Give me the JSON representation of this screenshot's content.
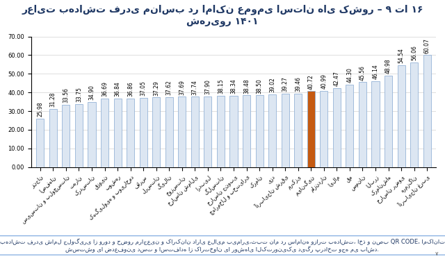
{
  "chart_data": {
    "type": "bar",
    "title": "رعایت بهداشت فردی مناسب در اماکن عمومی استان های کشور – ۹ تا ۱۶ شهریور ۱۴۰۱",
    "categories": [
      "زنجان",
      "اصفهان",
      "سیستان و بلوچستان",
      "تهران",
      "کردستان",
      "قزوین",
      "بوشهر",
      "کهگیلویه و بویراحمد",
      "فارس",
      "لرستان",
      "گیلان",
      "خوزستان",
      "خراسان شمالی",
      "اردبیل",
      "گلستان",
      "خراسان جنوبی",
      "چهارمحال و بختیاری",
      "کرمان",
      "یزد",
      "آذربایجان شرقی",
      "مرکزی",
      "میانگین",
      "مازندران",
      "ایلام",
      "قم",
      "سمنان",
      "البرز",
      "کرمانشاه",
      "خراسان رضوی",
      "هرمزگان",
      "آذربایجان غربی"
    ],
    "values": [
      25.98,
      31.28,
      33.56,
      33.75,
      34.9,
      36.69,
      36.84,
      36.86,
      37.05,
      37.29,
      37.62,
      37.69,
      37.74,
      37.9,
      38.15,
      38.34,
      38.48,
      38.5,
      39.02,
      39.27,
      39.46,
      40.72,
      40.99,
      42.47,
      44.3,
      45.56,
      46.14,
      48.98,
      54.54,
      56.06,
      60.07
    ],
    "value_labels": [
      "25.98",
      "31.28",
      "33.56",
      "33.75",
      "34.90",
      "36.69",
      "36.84",
      "36.86",
      "37.05",
      "37.29",
      "37.62",
      "37.69",
      "37.74",
      "37.90",
      "38.15",
      "38.34",
      "38.48",
      "38.50",
      "39.02",
      "39.27",
      "39.46",
      "40.72",
      "40.99",
      "42.47",
      "44.30",
      "45.56",
      "46.14",
      "48.98",
      "54.54",
      "56.06",
      "60.07"
    ],
    "colors": [
      "#dce6f2",
      "#dce6f2",
      "#dce6f2",
      "#dce6f2",
      "#dce6f2",
      "#dce6f2",
      "#dce6f2",
      "#dce6f2",
      "#dce6f2",
      "#dce6f2",
      "#dce6f2",
      "#dce6f2",
      "#dce6f2",
      "#dce6f2",
      "#dce6f2",
      "#dce6f2",
      "#dce6f2",
      "#dce6f2",
      "#dce6f2",
      "#dce6f2",
      "#dce6f2",
      "#c55a11",
      "#dce6f2",
      "#dce6f2",
      "#dce6f2",
      "#dce6f2",
      "#dce6f2",
      "#dce6f2",
      "#dce6f2",
      "#dce6f2",
      "#dce6f2"
    ],
    "ylim": [
      0,
      70
    ],
    "yticks": [
      {
        "value": 0,
        "label": "0.00"
      },
      {
        "value": 10,
        "label": "10.00"
      },
      {
        "value": 20,
        "label": "20.00"
      },
      {
        "value": 30,
        "label": "30.00"
      },
      {
        "value": 40,
        "label": "40.00"
      },
      {
        "value": 50,
        "label": "50.00"
      },
      {
        "value": 60,
        "label": "60.00"
      },
      {
        "value": 70,
        "label": "70.00"
      }
    ],
    "grid": true,
    "data_labels": true,
    "annotations": [
      "بهداشت فردی شامل جلوگیری از ورود و حضور مراجعین و کارکنان دارای علایم بیماری،ثبت نام در سامانه وزارت بهداشت، اخذ و نصب QR CODE، امکانات شستشو یا ضدعفونی دست و استفاده از کارتخوان یا روشهای الکترونیکی دیگر پرداخت وجه می باشد.",
      "۷"
    ]
  }
}
